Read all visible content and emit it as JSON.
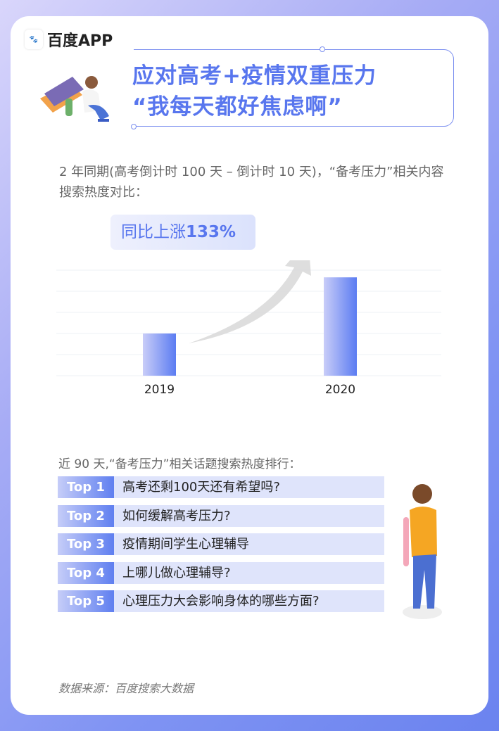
{
  "brand": {
    "name": "百度APP",
    "logo_text": "du"
  },
  "title": {
    "line1": "应对高考+疫情双重压力",
    "line2": "“我每天都好焦虑啊”"
  },
  "description": "2 年同期(高考倒计时 100 天 – 倒计时 10 天)，“备考压力”相关内容搜索热度对比：",
  "growth": {
    "label": "同比上涨",
    "value": "133%"
  },
  "chart_data": {
    "type": "bar",
    "categories": [
      "2019",
      "2020"
    ],
    "values": [
      1,
      2.33
    ],
    "ylim": [
      0,
      2.5
    ],
    "grid": true,
    "annotation": "同比上涨133%",
    "colors": {
      "bar_start": "#c9cdf8",
      "bar_end": "#5b7cf2",
      "arrow": "#d8d8d8"
    }
  },
  "ranking": {
    "subtitle": "近 90 天,“备考压力”相关话题搜索热度排行：",
    "items": [
      {
        "rank": "Top 1",
        "text": "高考还剩100天还有希望吗?"
      },
      {
        "rank": "Top 2",
        "text": "如何缓解高考压力?"
      },
      {
        "rank": "Top 3",
        "text": "疫情期间学生心理辅导"
      },
      {
        "rank": "Top 4",
        "text": "上哪儿做心理辅导?"
      },
      {
        "rank": "Top 5",
        "text": "心理压力大会影响身体的哪些方面?"
      }
    ]
  },
  "source": "数据来源：百度搜索大数据"
}
